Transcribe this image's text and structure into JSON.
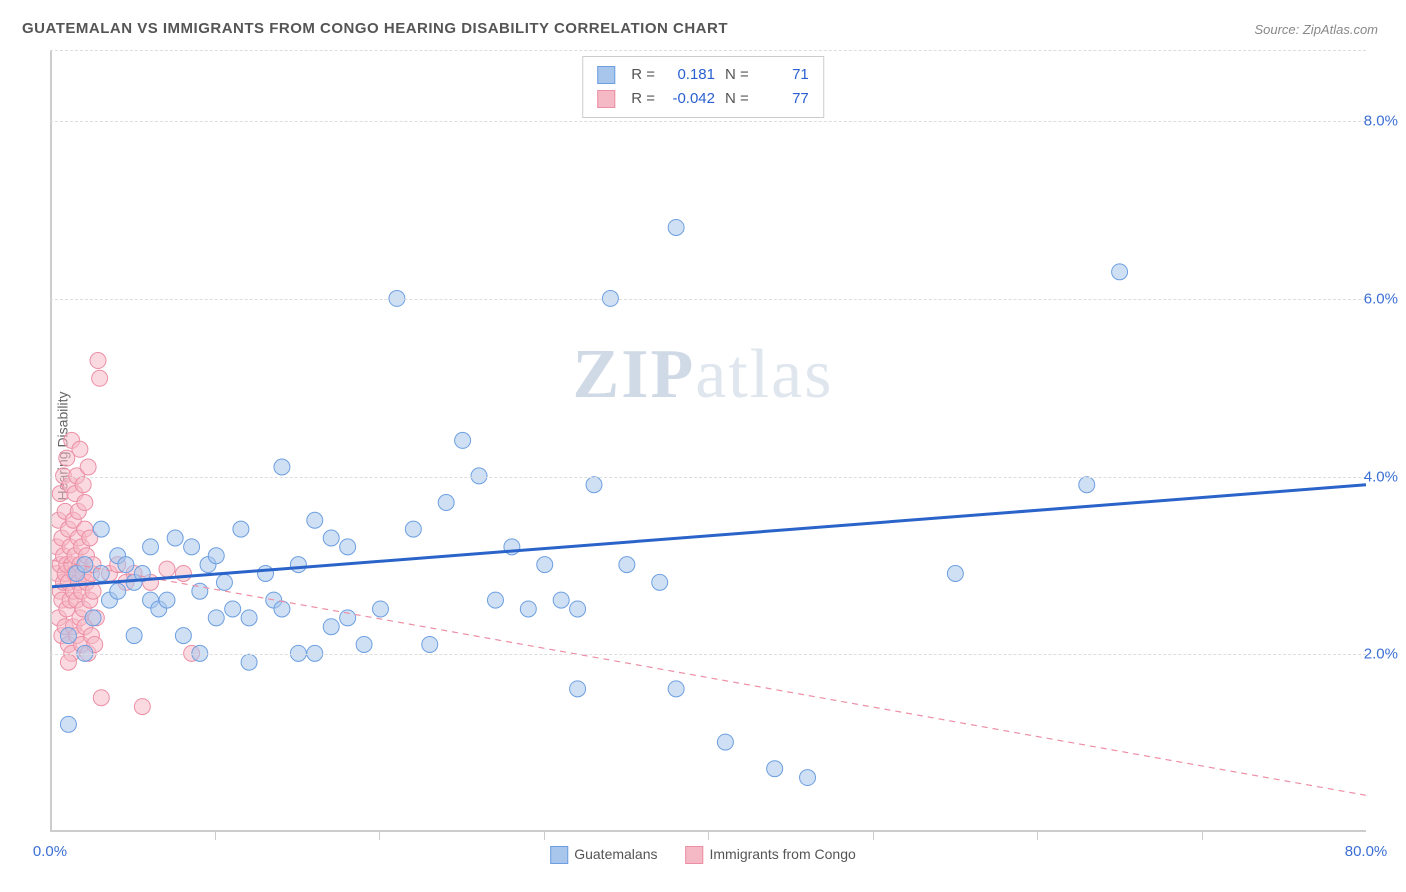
{
  "title": "GUATEMALAN VS IMMIGRANTS FROM CONGO HEARING DISABILITY CORRELATION CHART",
  "source": "Source: ZipAtlas.com",
  "ylabel": "Hearing Disability",
  "watermark_bold": "ZIP",
  "watermark_light": "atlas",
  "chart": {
    "type": "scatter",
    "xlim": [
      0,
      80
    ],
    "ylim": [
      0,
      8.8
    ],
    "x_ticks_labeled": [
      0,
      80
    ],
    "x_tick_format": "%",
    "x_ticks_minor": [
      10,
      20,
      30,
      40,
      50,
      60,
      70
    ],
    "y_ticks": [
      2,
      4,
      6,
      8
    ],
    "y_tick_format": "%",
    "grid_color": "#dddddd",
    "axis_color": "#cccccc",
    "background": "#ffffff",
    "label_color": "#3b6fd4",
    "tick_fontsize": 15,
    "title_fontsize": 15,
    "marker_radius": 8,
    "marker_opacity": 0.55,
    "trendline_width_solid": 3,
    "trendline_width_dashed": 1.2,
    "series": [
      {
        "name": "Guatemalans",
        "color_fill": "#a8c6ec",
        "color_stroke": "#6d9fe0",
        "trend_color": "#2a63c9",
        "trend_dash": "none",
        "trend": {
          "x1": 0,
          "y1": 2.75,
          "x2": 80,
          "y2": 3.9
        },
        "R": "0.181",
        "N": "71",
        "points": [
          [
            1,
            1.2
          ],
          [
            1,
            2.2
          ],
          [
            1.5,
            2.9
          ],
          [
            2,
            2.0
          ],
          [
            2,
            3.0
          ],
          [
            2.5,
            2.4
          ],
          [
            3,
            3.4
          ],
          [
            3,
            2.9
          ],
          [
            3.5,
            2.6
          ],
          [
            4,
            2.7
          ],
          [
            4,
            3.1
          ],
          [
            4.5,
            3.0
          ],
          [
            5,
            2.8
          ],
          [
            5,
            2.2
          ],
          [
            5.5,
            2.9
          ],
          [
            6,
            3.2
          ],
          [
            6,
            2.6
          ],
          [
            6.5,
            2.5
          ],
          [
            7,
            2.6
          ],
          [
            7.5,
            3.3
          ],
          [
            8,
            2.2
          ],
          [
            8.5,
            3.2
          ],
          [
            9,
            2.7
          ],
          [
            9,
            2.0
          ],
          [
            9.5,
            3.0
          ],
          [
            10,
            3.1
          ],
          [
            10,
            2.4
          ],
          [
            10.5,
            2.8
          ],
          [
            11,
            2.5
          ],
          [
            11.5,
            3.4
          ],
          [
            12,
            2.4
          ],
          [
            12,
            1.9
          ],
          [
            13,
            2.9
          ],
          [
            13.5,
            2.6
          ],
          [
            14,
            4.1
          ],
          [
            14,
            2.5
          ],
          [
            15,
            3.0
          ],
          [
            15,
            2.0
          ],
          [
            16,
            3.5
          ],
          [
            16,
            2.0
          ],
          [
            17,
            2.3
          ],
          [
            17,
            3.3
          ],
          [
            18,
            2.4
          ],
          [
            18,
            3.2
          ],
          [
            19,
            2.1
          ],
          [
            20,
            2.5
          ],
          [
            21,
            6.0
          ],
          [
            22,
            3.4
          ],
          [
            23,
            2.1
          ],
          [
            24,
            3.7
          ],
          [
            25,
            4.4
          ],
          [
            26,
            4.0
          ],
          [
            27,
            2.6
          ],
          [
            28,
            3.2
          ],
          [
            29,
            2.5
          ],
          [
            30,
            3.0
          ],
          [
            31,
            2.6
          ],
          [
            32,
            1.6
          ],
          [
            32,
            2.5
          ],
          [
            33,
            3.9
          ],
          [
            34,
            6.0
          ],
          [
            35,
            3.0
          ],
          [
            37,
            2.8
          ],
          [
            38,
            1.6
          ],
          [
            38,
            6.8
          ],
          [
            41,
            1.0
          ],
          [
            44,
            0.7
          ],
          [
            46,
            0.6
          ],
          [
            55,
            2.9
          ],
          [
            63,
            3.9
          ],
          [
            65,
            6.3
          ]
        ]
      },
      {
        "name": "Immigrants from Congo",
        "color_fill": "#f5b9c6",
        "color_stroke": "#ec8fa5",
        "trend_color": "#ec8fa5",
        "trend_dash": "6 5",
        "trend": {
          "x1": 0,
          "y1": 3.05,
          "x2": 80,
          "y2": 0.4
        },
        "R": "-0.042",
        "N": "77",
        "points": [
          [
            0.3,
            2.9
          ],
          [
            0.3,
            3.2
          ],
          [
            0.4,
            2.4
          ],
          [
            0.4,
            3.5
          ],
          [
            0.5,
            2.7
          ],
          [
            0.5,
            3.0
          ],
          [
            0.5,
            3.8
          ],
          [
            0.6,
            2.2
          ],
          [
            0.6,
            2.6
          ],
          [
            0.6,
            3.3
          ],
          [
            0.7,
            4.0
          ],
          [
            0.7,
            2.8
          ],
          [
            0.7,
            3.1
          ],
          [
            0.8,
            2.3
          ],
          [
            0.8,
            3.6
          ],
          [
            0.8,
            2.9
          ],
          [
            0.9,
            4.2
          ],
          [
            0.9,
            2.5
          ],
          [
            0.9,
            3.0
          ],
          [
            1.0,
            3.4
          ],
          [
            1.0,
            2.1
          ],
          [
            1.0,
            2.8
          ],
          [
            1.1,
            3.9
          ],
          [
            1.1,
            2.6
          ],
          [
            1.1,
            3.2
          ],
          [
            1.2,
            2.0
          ],
          [
            1.2,
            4.4
          ],
          [
            1.2,
            3.0
          ],
          [
            1.3,
            2.7
          ],
          [
            1.3,
            3.5
          ],
          [
            1.3,
            2.3
          ],
          [
            1.4,
            3.8
          ],
          [
            1.4,
            2.9
          ],
          [
            1.4,
            3.1
          ],
          [
            1.5,
            2.2
          ],
          [
            1.5,
            4.0
          ],
          [
            1.5,
            2.6
          ],
          [
            1.6,
            3.3
          ],
          [
            1.6,
            2.8
          ],
          [
            1.6,
            3.6
          ],
          [
            1.7,
            2.4
          ],
          [
            1.7,
            3.0
          ],
          [
            1.7,
            4.3
          ],
          [
            1.8,
            2.7
          ],
          [
            1.8,
            3.2
          ],
          [
            1.8,
            2.1
          ],
          [
            1.9,
            3.9
          ],
          [
            1.9,
            2.5
          ],
          [
            1.9,
            2.9
          ],
          [
            2.0,
            3.4
          ],
          [
            2.0,
            2.3
          ],
          [
            2.0,
            3.7
          ],
          [
            2.1,
            2.8
          ],
          [
            2.1,
            3.1
          ],
          [
            2.2,
            2.0
          ],
          [
            2.2,
            4.1
          ],
          [
            2.3,
            2.6
          ],
          [
            2.3,
            3.3
          ],
          [
            2.4,
            2.2
          ],
          [
            2.4,
            2.9
          ],
          [
            2.5,
            3.0
          ],
          [
            2.5,
            2.7
          ],
          [
            2.8,
            5.3
          ],
          [
            2.9,
            5.1
          ],
          [
            3.0,
            1.5
          ],
          [
            3.5,
            2.9
          ],
          [
            4.0,
            3.0
          ],
          [
            4.5,
            2.8
          ],
          [
            5.0,
            2.9
          ],
          [
            6.0,
            2.8
          ],
          [
            7.0,
            2.95
          ],
          [
            8.0,
            2.9
          ],
          [
            8.5,
            2.0
          ],
          [
            2.6,
            2.1
          ],
          [
            2.7,
            2.4
          ],
          [
            1.0,
            1.9
          ],
          [
            5.5,
            1.4
          ]
        ]
      }
    ],
    "legend_top": {
      "rows": [
        {
          "swatch_fill": "#a8c6ec",
          "swatch_stroke": "#6d9fe0",
          "r_label": "R =",
          "r_val": "0.181",
          "n_label": "N =",
          "n_val": "71"
        },
        {
          "swatch_fill": "#f5b9c6",
          "swatch_stroke": "#ec8fa5",
          "r_label": "R =",
          "r_val": "-0.042",
          "n_label": "N =",
          "n_val": "77"
        }
      ]
    },
    "legend_bottom": [
      {
        "swatch_fill": "#a8c6ec",
        "swatch_stroke": "#6d9fe0",
        "label": "Guatemalans"
      },
      {
        "swatch_fill": "#f5b9c6",
        "swatch_stroke": "#ec8fa5",
        "label": "Immigrants from Congo"
      }
    ]
  }
}
